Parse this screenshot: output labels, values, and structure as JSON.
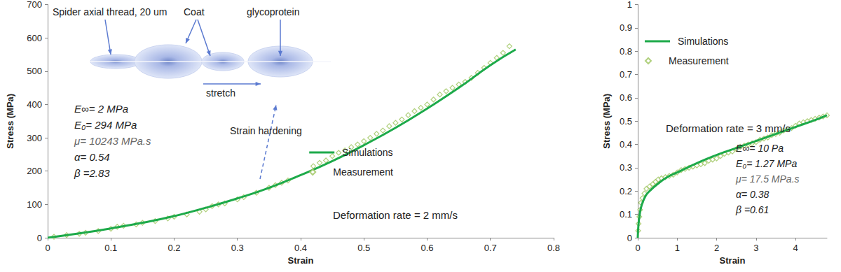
{
  "chart_data": [
    {
      "type": "line",
      "x_label": "Strain",
      "y_label": "Stress (MPa)",
      "xlim": [
        0,
        0.8
      ],
      "xticks": [
        0,
        0.1,
        0.2,
        0.3,
        0.4,
        0.5,
        0.6,
        0.7,
        0.8
      ],
      "ylim": [
        0,
        700
      ],
      "yticks": [
        0,
        100,
        200,
        300,
        400,
        500,
        600,
        700
      ],
      "grid": false,
      "legend": "right",
      "annotations": [
        "Spider axial thread, 20 um",
        "Coat",
        "glycoprotein",
        "stretch",
        "Strain hardening",
        "E∞= 2 MPa",
        "E₀= 294 MPa",
        "μ= 10243 MPa.s",
        "α= 0.54",
        "β =2.83",
        "Deformation rate = 2 mm/s"
      ],
      "series": [
        {
          "name": "Simulations",
          "type": "line",
          "color": "#1daa4a",
          "line_style": "solid",
          "x": [
            0,
            0.05,
            0.1,
            0.15,
            0.2,
            0.25,
            0.3,
            0.35,
            0.4,
            0.45,
            0.5,
            0.55,
            0.6,
            0.65,
            0.7,
            0.74
          ],
          "values": [
            0,
            13,
            28,
            45,
            65,
            90,
            118,
            150,
            188,
            230,
            278,
            330,
            388,
            450,
            518,
            565
          ]
        },
        {
          "name": "Measurement",
          "type": "scatter",
          "color": "#9cc45c",
          "marker": "diamond",
          "x": [
            0.01,
            0.03,
            0.05,
            0.06,
            0.08,
            0.1,
            0.11,
            0.12,
            0.14,
            0.15,
            0.17,
            0.19,
            0.2,
            0.22,
            0.24,
            0.25,
            0.26,
            0.27,
            0.28,
            0.3,
            0.31,
            0.33,
            0.35,
            0.36,
            0.37,
            0.38,
            0.42,
            0.43,
            0.44,
            0.45,
            0.46,
            0.47,
            0.48,
            0.49,
            0.5,
            0.51,
            0.52,
            0.53,
            0.54,
            0.55,
            0.56,
            0.57,
            0.58,
            0.59,
            0.6,
            0.61,
            0.62,
            0.63,
            0.64,
            0.65,
            0.66,
            0.67,
            0.68,
            0.69,
            0.7,
            0.71,
            0.72,
            0.73
          ],
          "values": [
            3,
            8,
            12,
            15,
            20,
            27,
            33,
            36,
            40,
            45,
            50,
            58,
            63,
            70,
            78,
            85,
            95,
            100,
            103,
            115,
            122,
            135,
            150,
            158,
            165,
            172,
            215,
            225,
            232,
            245,
            255,
            262,
            272,
            280,
            290,
            300,
            312,
            322,
            335,
            345,
            355,
            368,
            380,
            390,
            400,
            415,
            430,
            440,
            450,
            460,
            468,
            480,
            495,
            510,
            525,
            540,
            555,
            575
          ]
        }
      ]
    },
    {
      "type": "line",
      "x_label": "Strain",
      "y_label": "Stress (MPa)",
      "xlim": [
        0,
        4.8
      ],
      "xticks": [
        0,
        1,
        2,
        3,
        4
      ],
      "ylim": [
        0,
        1
      ],
      "yticks": [
        0,
        0.1,
        0.2,
        0.3,
        0.4,
        0.5,
        0.6,
        0.7,
        0.8,
        0.9,
        1
      ],
      "grid": false,
      "legend": "upper left",
      "annotations": [
        "Deformation rate = 3 mm/s",
        "E∞= 10 Pa",
        "E₀= 1.27 MPa",
        "μ= 17.5 MPa.s",
        "α= 0.38",
        "β =0.61"
      ],
      "series": [
        {
          "name": "Simulations",
          "type": "line",
          "color": "#1daa4a",
          "line_style": "solid",
          "x": [
            0,
            0.02,
            0.05,
            0.1,
            0.2,
            0.3,
            0.5,
            0.75,
            1,
            1.5,
            2,
            2.5,
            3,
            3.5,
            4,
            4.5,
            4.8
          ],
          "values": [
            0,
            0.06,
            0.1,
            0.14,
            0.18,
            0.2,
            0.23,
            0.26,
            0.28,
            0.32,
            0.355,
            0.385,
            0.415,
            0.445,
            0.475,
            0.505,
            0.525
          ]
        },
        {
          "name": "Measurement",
          "type": "scatter",
          "color": "#9cc45c",
          "marker": "diamond",
          "x": [
            0.01,
            0.02,
            0.04,
            0.06,
            0.08,
            0.12,
            0.17,
            0.22,
            0.3,
            0.38,
            0.45,
            0.52,
            0.6,
            0.7,
            0.8,
            0.9,
            1.0,
            1.1,
            1.2,
            1.3,
            1.4,
            1.5,
            1.6,
            1.7,
            1.8,
            1.9,
            2.0,
            2.1,
            2.2,
            2.3,
            2.4,
            2.5,
            2.6,
            2.7,
            2.8,
            2.9,
            3.0,
            3.1,
            3.2,
            3.3,
            3.4,
            3.5,
            3.6,
            3.7,
            3.8,
            3.9,
            4.0,
            4.1,
            4.2,
            4.3,
            4.4,
            4.5,
            4.6,
            4.7,
            4.8
          ],
          "values": [
            0.03,
            0.06,
            0.09,
            0.12,
            0.15,
            0.17,
            0.19,
            0.21,
            0.22,
            0.23,
            0.24,
            0.25,
            0.255,
            0.26,
            0.265,
            0.27,
            0.28,
            0.29,
            0.295,
            0.3,
            0.305,
            0.31,
            0.315,
            0.32,
            0.33,
            0.335,
            0.34,
            0.35,
            0.36,
            0.365,
            0.37,
            0.38,
            0.39,
            0.395,
            0.4,
            0.405,
            0.41,
            0.42,
            0.425,
            0.43,
            0.44,
            0.445,
            0.45,
            0.46,
            0.465,
            0.47,
            0.48,
            0.49,
            0.495,
            0.5,
            0.505,
            0.51,
            0.515,
            0.52,
            0.525
          ]
        }
      ]
    }
  ]
}
